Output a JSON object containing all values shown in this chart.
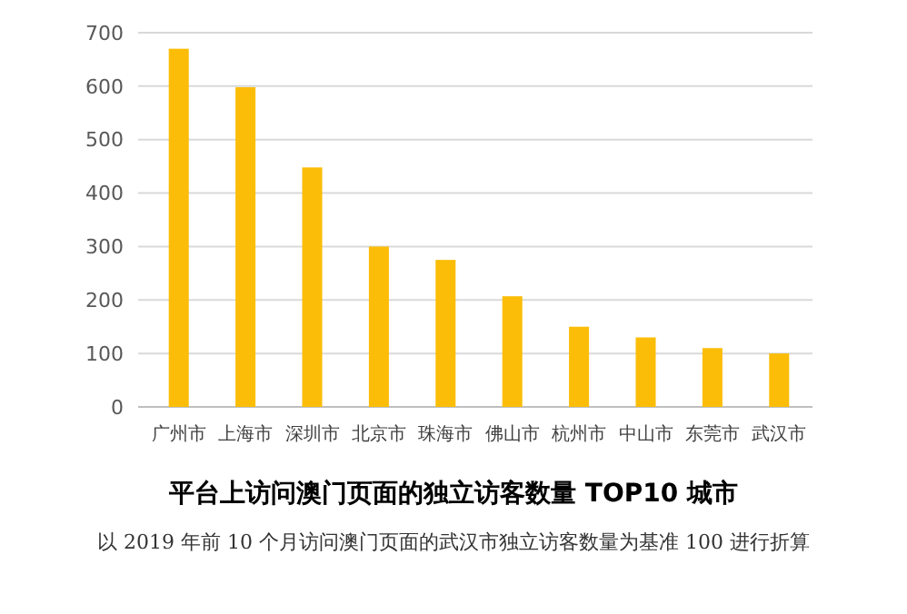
{
  "chart_data": {
    "type": "bar",
    "title": "平台上访问澳门页面的独立访客数量 TOP10 城市",
    "categories": [
      "广州市",
      "上海市",
      "深圳市",
      "北京市",
      "珠海市",
      "佛山市",
      "杭州市",
      "中山市",
      "东莞市",
      "武汉市"
    ],
    "values": [
      670,
      598,
      448,
      300,
      275,
      207,
      150,
      130,
      110,
      100
    ],
    "color": "#fbbd08",
    "ylim": [
      0,
      700
    ],
    "yticks": [
      0,
      100,
      200,
      300,
      400,
      500,
      600,
      700
    ],
    "grid": "y",
    "annotations": [
      "以 2019 年前 10 个月访问澳门页面的武汉市独立访客数量为基准 100 进行折算"
    ]
  }
}
